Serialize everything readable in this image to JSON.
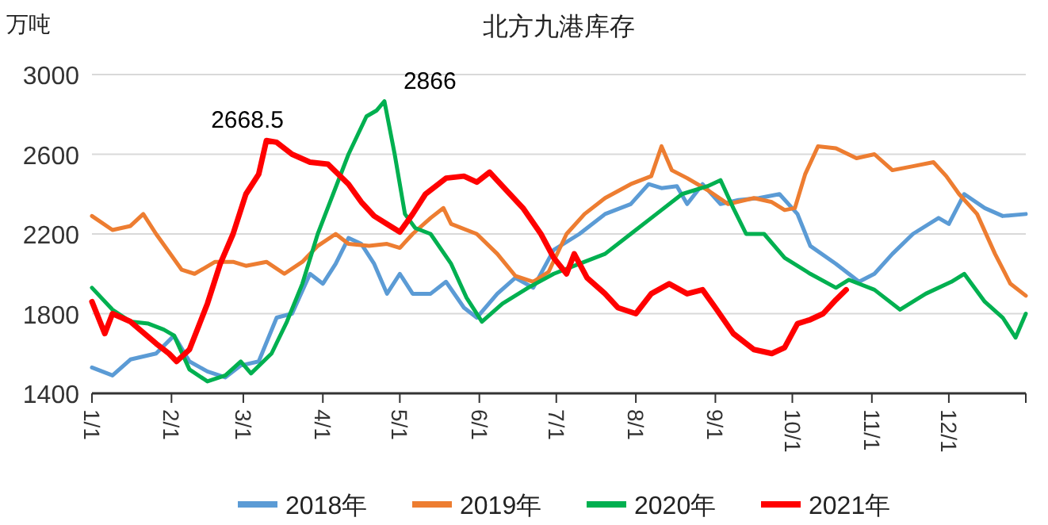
{
  "chart_data": {
    "type": "line",
    "title": "北方九港库存",
    "ylabel": "万吨",
    "xlim": [
      "--01-01",
      "--12-31"
    ],
    "ylim": [
      1400,
      3000
    ],
    "yticks": [
      1400,
      1800,
      2200,
      2600,
      3000
    ],
    "xticks": [
      {
        "value": "--01-01",
        "label": "1/1"
      },
      {
        "value": "--02-01",
        "label": "2/1"
      },
      {
        "value": "--03-01",
        "label": "3/1"
      },
      {
        "value": "--04-01",
        "label": "4/1"
      },
      {
        "value": "--05-01",
        "label": "5/1"
      },
      {
        "value": "--06-01",
        "label": "6/1"
      },
      {
        "value": "--07-01",
        "label": "7/1"
      },
      {
        "value": "--08-01",
        "label": "8/1"
      },
      {
        "value": "--09-01",
        "label": "9/1"
      },
      {
        "value": "--10-01",
        "label": "10/1"
      },
      {
        "value": "--11-01",
        "label": "11/1"
      },
      {
        "value": "--12-01",
        "label": "12/1"
      },
      {
        "value": "--12-31",
        "label": null
      }
    ],
    "grid": "y",
    "legend": "bottom",
    "series": [
      {
        "name": "2018年",
        "color": "#5b9bd5",
        "x": [
          "--01-01",
          "--01-09",
          "--01-16",
          "--01-26",
          "--02-02",
          "--02-08",
          "--02-15",
          "--02-22",
          "--02-28",
          "--03-07",
          "--03-14",
          "--03-20",
          "--03-27",
          "--04-01",
          "--04-06",
          "--04-11",
          "--04-16",
          "--04-21",
          "--04-26",
          "--05-01",
          "--05-06",
          "--05-13",
          "--05-19",
          "--05-26",
          "--05-31",
          "--06-08",
          "--06-15",
          "--06-22",
          "--06-30",
          "--07-10",
          "--07-20",
          "--07-30",
          "--08-06",
          "--08-11",
          "--08-17",
          "--08-21",
          "--08-27",
          "--09-03",
          "--09-10",
          "--09-18",
          "--09-26",
          "--10-03",
          "--10-08",
          "--10-18",
          "--10-27",
          "--11-02",
          "--11-09",
          "--11-17",
          "--11-27",
          "--12-01",
          "--12-07",
          "--12-15",
          "--12-22",
          "--12-31"
        ],
        "values": [
          1530,
          1490,
          1570,
          1600,
          1690,
          1560,
          1510,
          1480,
          1540,
          1560,
          1780,
          1800,
          2000,
          1950,
          2050,
          2180,
          2150,
          2050,
          1900,
          2000,
          1900,
          1900,
          1960,
          1830,
          1780,
          1900,
          1980,
          1930,
          2120,
          2200,
          2300,
          2350,
          2450,
          2430,
          2440,
          2350,
          2450,
          2350,
          2370,
          2380,
          2400,
          2300,
          2140,
          2050,
          1960,
          2000,
          2100,
          2200,
          2280,
          2250,
          2400,
          2330,
          2290,
          2300
        ]
      },
      {
        "name": "2019年",
        "color": "#ed7d31",
        "x": [
          "--01-01",
          "--01-09",
          "--01-16",
          "--01-21",
          "--01-26",
          "--02-05",
          "--02-10",
          "--02-18",
          "--02-25",
          "--03-02",
          "--03-10",
          "--03-17",
          "--03-24",
          "--03-30",
          "--04-06",
          "--04-11",
          "--04-19",
          "--04-26",
          "--05-01",
          "--05-06",
          "--05-13",
          "--05-18",
          "--05-21",
          "--05-31",
          "--06-08",
          "--06-15",
          "--06-22",
          "--06-28",
          "--07-05",
          "--07-12",
          "--07-20",
          "--07-30",
          "--08-07",
          "--08-11",
          "--08-15",
          "--08-21",
          "--08-29",
          "--09-06",
          "--09-16",
          "--09-23",
          "--09-28",
          "--10-02",
          "--10-06",
          "--10-11",
          "--10-18",
          "--10-26",
          "--11-02",
          "--11-09",
          "--11-17",
          "--11-25",
          "--11-30",
          "--12-05",
          "--12-12",
          "--12-19",
          "--12-25",
          "--12-31"
        ],
        "values": [
          2290,
          2220,
          2240,
          2300,
          2200,
          2020,
          2000,
          2060,
          2060,
          2040,
          2060,
          2000,
          2060,
          2140,
          2200,
          2150,
          2140,
          2150,
          2130,
          2200,
          2280,
          2330,
          2250,
          2200,
          2100,
          1990,
          1960,
          2010,
          2200,
          2300,
          2380,
          2450,
          2490,
          2640,
          2520,
          2480,
          2420,
          2350,
          2380,
          2360,
          2320,
          2330,
          2500,
          2640,
          2630,
          2580,
          2600,
          2520,
          2540,
          2560,
          2490,
          2400,
          2300,
          2100,
          1950,
          1890
        ]
      },
      {
        "name": "2020年",
        "color": "#00b050",
        "x": [
          "--01-01",
          "--01-09",
          "--01-16",
          "--01-23",
          "--01-29",
          "--02-02",
          "--02-08",
          "--02-15",
          "--02-22",
          "--02-28",
          "--03-04",
          "--03-12",
          "--03-18",
          "--03-24",
          "--03-30",
          "--04-05",
          "--04-11",
          "--04-18",
          "--04-22",
          "--04-25",
          "--04-29",
          "--05-03",
          "--05-07",
          "--05-13",
          "--05-21",
          "--05-27",
          "--06-02",
          "--06-10",
          "--06-20",
          "--06-30",
          "--07-10",
          "--07-20",
          "--07-30",
          "--08-09",
          "--08-19",
          "--08-29",
          "--09-03",
          "--09-08",
          "--09-13",
          "--09-20",
          "--09-28",
          "--10-08",
          "--10-18",
          "--10-23",
          "--11-02",
          "--11-12",
          "--11-22",
          "--12-02",
          "--12-07",
          "--12-15",
          "--12-22",
          "--12-27",
          "--12-31"
        ],
        "values": [
          1930,
          1820,
          1760,
          1750,
          1720,
          1690,
          1520,
          1460,
          1490,
          1560,
          1500,
          1600,
          1760,
          1950,
          2200,
          2400,
          2600,
          2790,
          2820,
          2866,
          2600,
          2300,
          2230,
          2200,
          2050,
          1880,
          1760,
          1850,
          1930,
          2000,
          2050,
          2100,
          2200,
          2300,
          2400,
          2440,
          2470,
          2330,
          2200,
          2200,
          2080,
          2000,
          1930,
          1970,
          1920,
          1820,
          1900,
          1960,
          2000,
          1860,
          1780,
          1680,
          1800
        ]
      },
      {
        "name": "2021年",
        "color": "#ff0000",
        "x": [
          "--01-01",
          "--01-06",
          "--01-09",
          "--01-16",
          "--01-26",
          "--01-31",
          "--02-03",
          "--02-08",
          "--02-15",
          "--02-20",
          "--02-25",
          "--03-02",
          "--03-07",
          "--03-10",
          "--03-14",
          "--03-20",
          "--03-27",
          "--04-03",
          "--04-11",
          "--04-16",
          "--04-21",
          "--04-26",
          "--05-01",
          "--05-06",
          "--05-11",
          "--05-19",
          "--05-26",
          "--05-31",
          "--06-05",
          "--06-10",
          "--06-18",
          "--06-25",
          "--06-30",
          "--07-05",
          "--07-08",
          "--07-13",
          "--07-20",
          "--07-25",
          "--08-01",
          "--08-07",
          "--08-14",
          "--08-21",
          "--08-27",
          "--09-01",
          "--09-08",
          "--09-16",
          "--09-23",
          "--09-28",
          "--10-03",
          "--10-08",
          "--10-13",
          "--10-18",
          "--10-22"
        ],
        "values": [
          1860,
          1700,
          1800,
          1760,
          1650,
          1600,
          1560,
          1620,
          1850,
          2050,
          2200,
          2400,
          2500,
          2668.5,
          2660,
          2600,
          2560,
          2550,
          2450,
          2360,
          2290,
          2250,
          2210,
          2300,
          2400,
          2480,
          2490,
          2460,
          2510,
          2440,
          2330,
          2200,
          2080,
          2000,
          2100,
          1980,
          1900,
          1830,
          1800,
          1900,
          1950,
          1900,
          1920,
          1830,
          1700,
          1620,
          1600,
          1630,
          1750,
          1770,
          1800,
          1870,
          1920
        ]
      }
    ],
    "annotations": [
      {
        "text": "2668.5",
        "x": "--03-10",
        "y": 2668.5
      },
      {
        "text": "2866",
        "x": "--04-25",
        "y": 2866
      }
    ]
  }
}
